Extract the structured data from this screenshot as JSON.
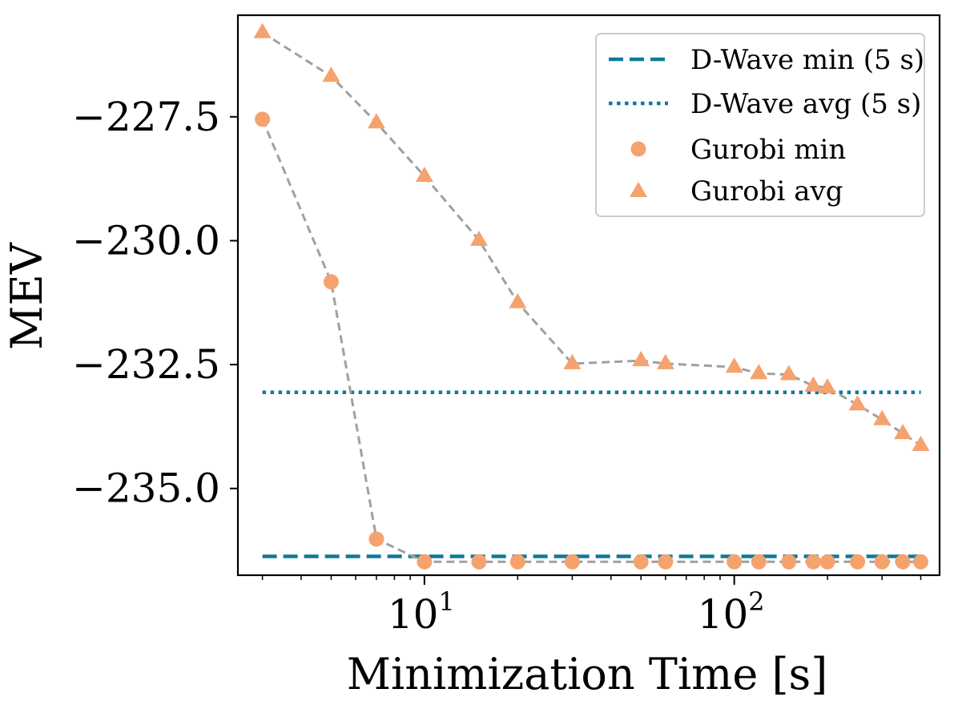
{
  "chart_data": {
    "type": "line",
    "title": "",
    "xlabel": "Minimization Time [s]",
    "ylabel": "MEV",
    "xscale": "log",
    "xlim": [
      2.5,
      460
    ],
    "ylim": [
      -236.75,
      -225.45
    ],
    "x_ticks": [
      {
        "value": 10,
        "base": "10",
        "exp": "1"
      },
      {
        "value": 100,
        "base": "10",
        "exp": "2"
      }
    ],
    "y_ticks": [
      {
        "value": -227.5,
        "label": "−227.5"
      },
      {
        "value": -230.0,
        "label": "−230.0"
      },
      {
        "value": -232.5,
        "label": "−232.5"
      },
      {
        "value": -235.0,
        "label": "−235.0"
      }
    ],
    "reference_lines": [
      {
        "name": "D-Wave min (5 s)",
        "legend_label": "D-Wave min (5 s)",
        "value": -236.37,
        "style": "dashed",
        "color": "#11799c",
        "x_range": [
          3,
          400
        ]
      },
      {
        "name": "D-Wave avg (5 s)",
        "legend_label": "D-Wave avg (5 s)",
        "value": -233.06,
        "style": "dotted",
        "color": "#11799c",
        "x_range": [
          3,
          400
        ]
      }
    ],
    "series": [
      {
        "name": "Gurobi min",
        "legend_label": "Gurobi min",
        "marker": "circle",
        "color": "#f5a26e",
        "line_color": "#a0a0a0",
        "x": [
          3,
          5,
          7,
          10,
          15,
          20,
          30,
          50,
          60,
          100,
          120,
          150,
          180,
          200,
          250,
          300,
          350,
          400
        ],
        "y": [
          -227.55,
          -230.83,
          -236.02,
          -236.48,
          -236.48,
          -236.48,
          -236.48,
          -236.48,
          -236.48,
          -236.48,
          -236.48,
          -236.48,
          -236.48,
          -236.48,
          -236.48,
          -236.48,
          -236.48,
          -236.48
        ]
      },
      {
        "name": "Gurobi avg",
        "legend_label": "Gurobi avg",
        "marker": "triangle",
        "color": "#f5a26e",
        "line_color": "#a0a0a0",
        "x": [
          3,
          5,
          7,
          10,
          15,
          20,
          30,
          50,
          60,
          100,
          120,
          150,
          180,
          200,
          250,
          300,
          350,
          400
        ],
        "y": [
          -225.8,
          -226.68,
          -227.62,
          -228.7,
          -229.99,
          -231.25,
          -232.48,
          -232.42,
          -232.48,
          -232.55,
          -232.68,
          -232.7,
          -232.93,
          -232.97,
          -233.31,
          -233.61,
          -233.89,
          -234.13
        ]
      }
    ],
    "legend": {
      "position": "top-right"
    }
  }
}
